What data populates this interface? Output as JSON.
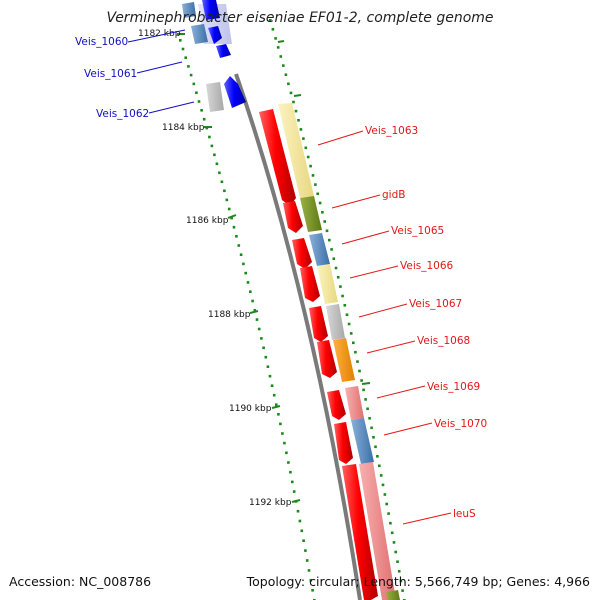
{
  "title": "Verminephrobacter eiseniae EF01-2, complete genome",
  "footer": {
    "accession": "Accession: NC_008786",
    "summary": "Topology: circular; Length: 5,566,749 bp; Genes: 4,966"
  },
  "colors": {
    "red_strand": "#f01010",
    "blue_strand": "#0b0bf0",
    "label_blue": "#1010c0",
    "label_red": "#e01818",
    "tick_green": "#1a8a1a",
    "backbone": "#808080"
  },
  "ticks": [
    {
      "label": "1182 kbp"
    },
    {
      "label": "1184 kbp"
    },
    {
      "label": "1186 kbp"
    },
    {
      "label": "1188 kbp"
    },
    {
      "label": "1190 kbp"
    },
    {
      "label": "1192 kbp"
    }
  ],
  "genes": [
    {
      "label": "Veis_1060",
      "strand": "blue"
    },
    {
      "label": "Veis_1061",
      "strand": "blue"
    },
    {
      "label": "Veis_1062",
      "strand": "blue"
    },
    {
      "label": "Veis_1063",
      "strand": "red"
    },
    {
      "label": "gidB",
      "strand": "red"
    },
    {
      "label": "Veis_1065",
      "strand": "red"
    },
    {
      "label": "Veis_1066",
      "strand": "red"
    },
    {
      "label": "Veis_1067",
      "strand": "red"
    },
    {
      "label": "Veis_1068",
      "strand": "red"
    },
    {
      "label": "Veis_1069",
      "strand": "red"
    },
    {
      "label": "Veis_1070",
      "strand": "red"
    },
    {
      "label": "leuS",
      "strand": "red"
    }
  ]
}
